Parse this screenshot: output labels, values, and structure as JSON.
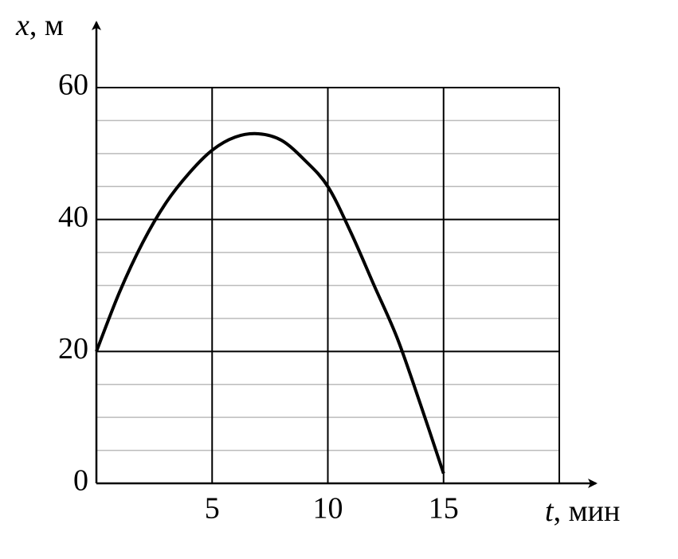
{
  "chart_data": {
    "type": "line",
    "x_label": {
      "symbol": "t",
      "unit": ", мин"
    },
    "y_label": {
      "symbol": "x",
      "unit": ", м"
    },
    "x": [
      0,
      1,
      2,
      3,
      4,
      5,
      6,
      7,
      8,
      9,
      10,
      11,
      12,
      13,
      14,
      15
    ],
    "values": [
      20,
      29,
      36.5,
      42.5,
      47,
      50.5,
      52.5,
      53,
      52,
      49,
      45,
      38,
      30,
      22,
      12,
      1.5
    ],
    "color": "#000000",
    "xlim": [
      0,
      20
    ],
    "ylim": [
      0,
      60
    ],
    "xticks": [
      5,
      10,
      15
    ],
    "yticks": [
      0,
      20,
      40,
      60
    ],
    "y_minor_ticks": [
      5,
      10,
      15,
      25,
      30,
      35,
      45,
      50,
      55
    ],
    "grid": true
  }
}
